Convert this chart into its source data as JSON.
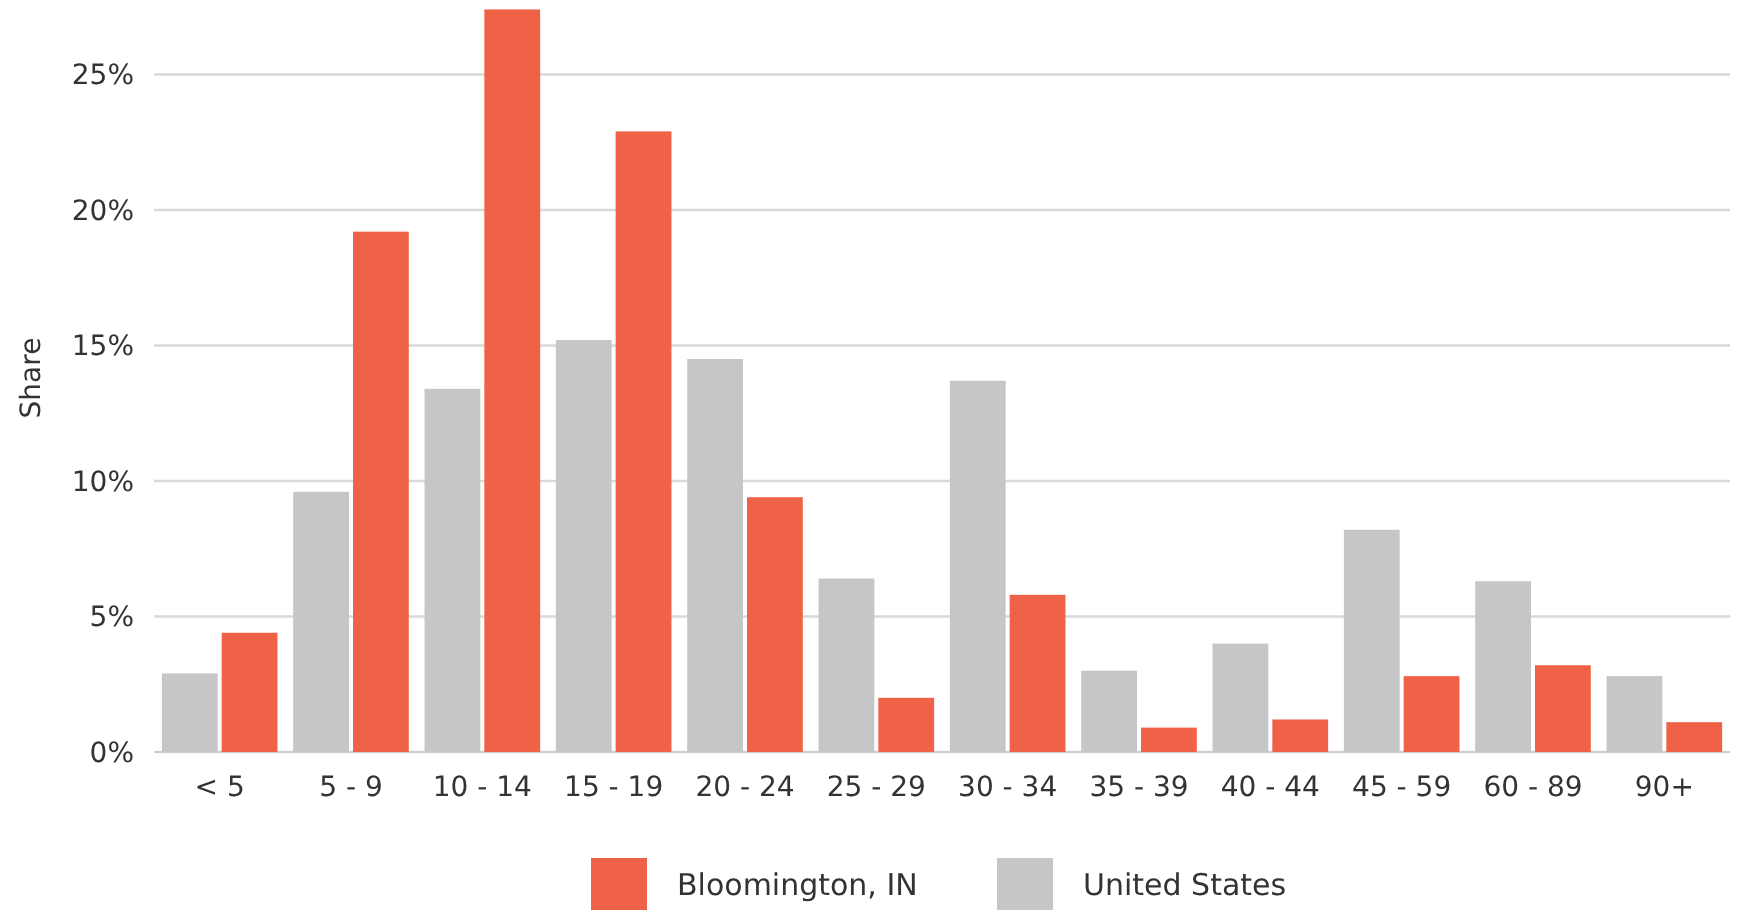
{
  "chart_data": {
    "type": "bar",
    "ylabel": "Share",
    "categories": [
      "< 5",
      "5 - 9",
      "10 - 14",
      "15 - 19",
      "20 - 24",
      "25 - 29",
      "30 - 34",
      "35 - 39",
      "40 - 44",
      "45 - 59",
      "60 - 89",
      "90+"
    ],
    "series": [
      {
        "name": "United States",
        "color": "#c6c6c8",
        "values": [
          2.9,
          9.6,
          13.4,
          15.2,
          14.5,
          6.4,
          13.7,
          3.0,
          4.0,
          8.2,
          6.3,
          2.8
        ]
      },
      {
        "name": "Bloomington, IN",
        "color": "#ef6248",
        "values": [
          4.4,
          19.2,
          27.4,
          22.9,
          9.4,
          2.0,
          5.8,
          0.9,
          1.2,
          2.8,
          3.2,
          1.1
        ]
      }
    ],
    "ylim": [
      0,
      27.6
    ],
    "yticks": [
      {
        "value": 0,
        "label": "0%"
      },
      {
        "value": 5,
        "label": "5%"
      },
      {
        "value": 10,
        "label": "10%"
      },
      {
        "value": 15,
        "label": "15%"
      },
      {
        "value": 20,
        "label": "20%"
      },
      {
        "value": 25,
        "label": "25%"
      }
    ],
    "grid": "y",
    "legend": "bottom"
  }
}
